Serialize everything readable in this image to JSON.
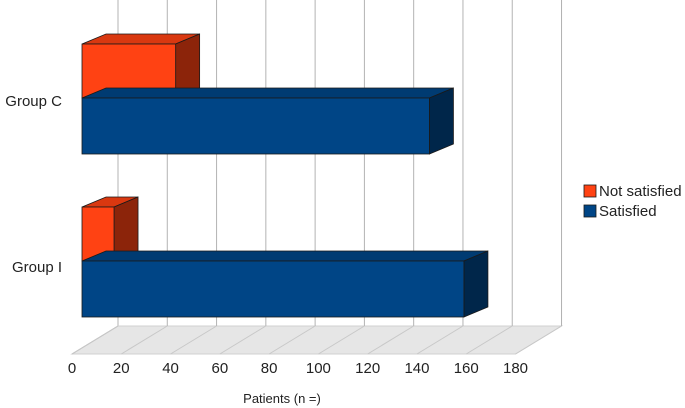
{
  "chart_data": {
    "type": "bar",
    "orientation": "horizontal",
    "style": "3d",
    "categories": [
      "Group C",
      "Group I"
    ],
    "series": [
      {
        "name": "Not satisfied",
        "values": [
          38,
          13
        ],
        "color": "#ff4213"
      },
      {
        "name": "Satisfied",
        "values": [
          141,
          155
        ],
        "color": "#004586"
      }
    ],
    "x_ticks": [
      0,
      20,
      40,
      60,
      80,
      100,
      120,
      140,
      160,
      180
    ],
    "xlim": [
      0,
      180
    ],
    "xlabel": "Patients (n =)",
    "ylabel": "",
    "title": "",
    "grid": true,
    "legend_position": "right"
  }
}
